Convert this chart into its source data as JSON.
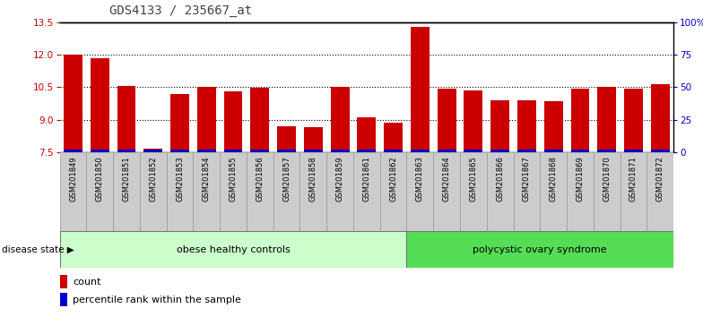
{
  "title": "GDS4133 / 235667_at",
  "samples": [
    "GSM201849",
    "GSM201850",
    "GSM201851",
    "GSM201852",
    "GSM201853",
    "GSM201854",
    "GSM201855",
    "GSM201856",
    "GSM201857",
    "GSM201858",
    "GSM201859",
    "GSM201861",
    "GSM201862",
    "GSM201863",
    "GSM201864",
    "GSM201865",
    "GSM201866",
    "GSM201867",
    "GSM201868",
    "GSM201869",
    "GSM201870",
    "GSM201871",
    "GSM201872"
  ],
  "count_values": [
    12.0,
    11.85,
    10.55,
    7.65,
    10.2,
    10.5,
    10.3,
    10.47,
    8.7,
    8.65,
    10.5,
    9.1,
    8.85,
    13.3,
    10.45,
    10.35,
    9.9,
    9.9,
    9.85,
    10.45,
    10.5,
    10.45,
    10.65
  ],
  "y_min": 7.5,
  "y_max": 13.5,
  "y_ticks": [
    7.5,
    9.0,
    10.5,
    12.0,
    13.5
  ],
  "right_y_ticks": [
    0,
    25,
    50,
    75,
    100
  ],
  "right_y_labels": [
    "0",
    "25",
    "50",
    "75",
    "100%"
  ],
  "bar_color_red": "#cc0000",
  "bar_color_blue": "#0000cc",
  "group1_label": "obese healthy controls",
  "group2_label": "polycystic ovary syndrome",
  "group1_count": 13,
  "group2_count": 10,
  "disease_state_label": "disease state",
  "legend_count_label": "count",
  "legend_percentile_label": "percentile rank within the sample",
  "group1_color": "#ccffcc",
  "group2_color": "#55dd55",
  "title_color": "#444444",
  "axis_label_color_red": "#cc0000",
  "axis_label_color_blue": "#0000cc",
  "tick_bg_color": "#cccccc",
  "pct_bar_height": 0.12
}
